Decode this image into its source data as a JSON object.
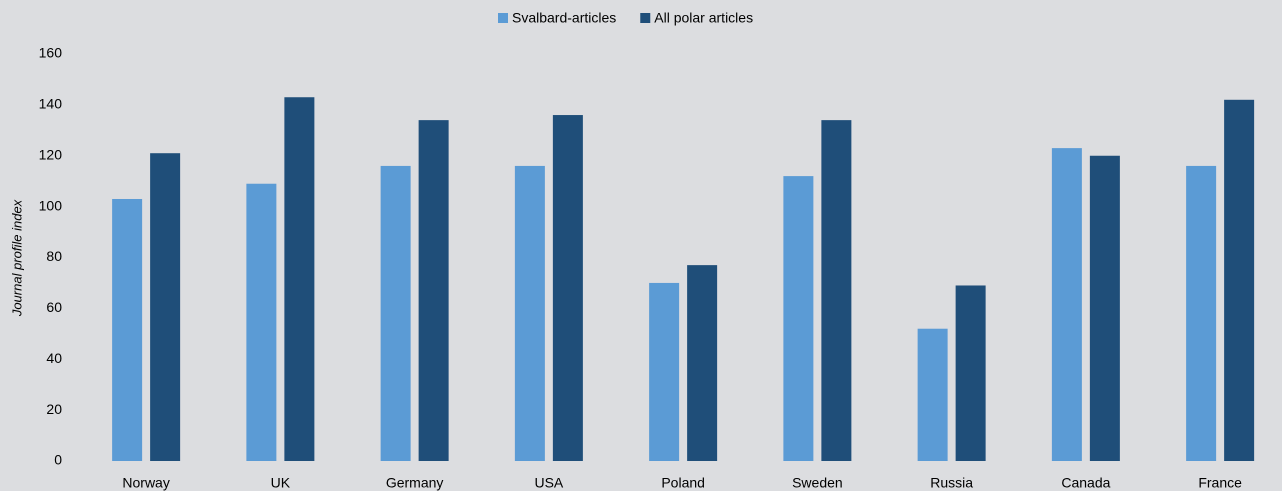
{
  "chart_data": {
    "type": "bar",
    "y_label": "Journal profile index",
    "categories": [
      "Norway",
      "UK",
      "Germany",
      "USA",
      "Poland",
      "Sweden",
      "Russia",
      "Canada",
      "France"
    ],
    "series": [
      {
        "name": "Svalbard-articles",
        "color": "#5b9bd5",
        "values": [
          103,
          109,
          116,
          116,
          70,
          112,
          52,
          123,
          116
        ]
      },
      {
        "name": "All polar articles",
        "color": "#1f4e79",
        "values": [
          121,
          143,
          134,
          136,
          77,
          134,
          69,
          120,
          142
        ]
      }
    ],
    "ylim": [
      0,
      160
    ],
    "yticks": [
      0,
      20,
      40,
      60,
      80,
      100,
      120,
      140,
      160
    ],
    "grid": false,
    "legend": "top"
  }
}
